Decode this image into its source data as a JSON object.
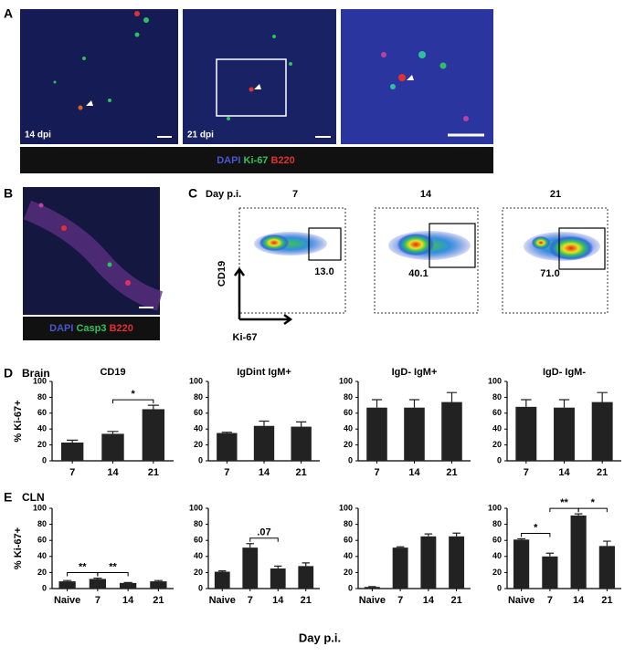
{
  "panelA": {
    "letter": "A",
    "image_labels": [
      "14 dpi",
      "21 dpi"
    ],
    "stains": [
      "DAPI",
      "Ki-67",
      "B220"
    ]
  },
  "panelB": {
    "letter": "B",
    "stains": [
      "DAPI",
      "Casp3",
      "B220"
    ]
  },
  "panelC": {
    "letter": "C",
    "header": "Day p.i.",
    "days": [
      "7",
      "14",
      "21"
    ],
    "gates": [
      "13.0",
      "40.1",
      "71.0"
    ],
    "y_axis": "CD19",
    "x_axis": "Ki-67"
  },
  "panelD": {
    "letter": "D",
    "tissue": "Brain"
  },
  "panelE": {
    "letter": "E",
    "tissue": "CLN",
    "x_axis": "Day p.i."
  },
  "chart_data": [
    {
      "type": "bar",
      "title": "CD19",
      "ylabel": "% Ki-67+",
      "categories": [
        "7",
        "14",
        "21"
      ],
      "values": [
        23,
        34,
        65
      ],
      "errors": [
        3,
        3,
        5
      ],
      "color": "#222222",
      "ylim": [
        0,
        100
      ],
      "yticks": [
        0,
        20,
        40,
        60,
        80,
        100
      ],
      "annotations": [
        {
          "text": "*",
          "between": [
            1,
            2
          ]
        }
      ]
    },
    {
      "type": "bar",
      "title": "IgDint IgM+",
      "categories": [
        "7",
        "14",
        "21"
      ],
      "values": [
        35,
        44,
        43
      ],
      "errors": [
        1,
        6,
        6
      ],
      "color": "#222222",
      "ylim": [
        0,
        100
      ],
      "yticks": [
        0,
        20,
        40,
        60,
        80,
        100
      ],
      "annotations": []
    },
    {
      "type": "bar",
      "title": "IgD- IgM+",
      "categories": [
        "7",
        "14",
        "21"
      ],
      "values": [
        67,
        67,
        74
      ],
      "errors": [
        10,
        10,
        12
      ],
      "color": "#222222",
      "ylim": [
        0,
        100
      ],
      "yticks": [
        0,
        20,
        40,
        60,
        80,
        100
      ],
      "annotations": []
    },
    {
      "type": "bar",
      "title": "IgD- IgM-",
      "categories": [
        "7",
        "14",
        "21"
      ],
      "values": [
        68,
        67,
        74
      ],
      "errors": [
        9,
        10,
        12
      ],
      "color": "#222222",
      "ylim": [
        0,
        100
      ],
      "yticks": [
        0,
        20,
        40,
        60,
        80,
        100
      ],
      "annotations": []
    },
    {
      "type": "bar",
      "ylabel": "% Ki-67+",
      "categories": [
        "Naive",
        "7",
        "14",
        "21"
      ],
      "values": [
        9,
        12,
        7,
        9
      ],
      "errors": [
        1,
        1,
        0.5,
        1
      ],
      "color": "#222222",
      "ylim": [
        0,
        100
      ],
      "yticks": [
        0,
        20,
        40,
        60,
        80,
        100
      ],
      "annotations": [
        {
          "text": "**",
          "between": [
            0,
            1
          ]
        },
        {
          "text": "**",
          "between": [
            1,
            2
          ]
        }
      ]
    },
    {
      "type": "bar",
      "categories": [
        "Naive",
        "7",
        "14",
        "21"
      ],
      "values": [
        21,
        51,
        25,
        28
      ],
      "errors": [
        1,
        5,
        3,
        4
      ],
      "color": "#222222",
      "ylim": [
        0,
        100
      ],
      "yticks": [
        0,
        20,
        40,
        60,
        80,
        100
      ],
      "annotations": [
        {
          "text": ".07",
          "between": [
            1,
            2
          ]
        }
      ]
    },
    {
      "type": "bar",
      "categories": [
        "Naive",
        "7",
        "14",
        "21"
      ],
      "values": [
        2,
        51,
        65,
        65
      ],
      "errors": [
        0.5,
        1,
        3,
        4
      ],
      "color": "#222222",
      "ylim": [
        0,
        100
      ],
      "yticks": [
        0,
        20,
        40,
        60,
        80,
        100
      ],
      "annotations": []
    },
    {
      "type": "bar",
      "categories": [
        "Naive",
        "7",
        "14",
        "21"
      ],
      "values": [
        61,
        40,
        91,
        53
      ],
      "errors": [
        1,
        4,
        2,
        6
      ],
      "color": "#222222",
      "ylim": [
        0,
        100
      ],
      "yticks": [
        0,
        20,
        40,
        60,
        80,
        100
      ],
      "annotations": [
        {
          "text": "*",
          "between": [
            0,
            1
          ]
        },
        {
          "text": "**",
          "between": [
            1,
            2
          ]
        },
        {
          "text": "*",
          "between": [
            2,
            3
          ]
        }
      ]
    }
  ]
}
